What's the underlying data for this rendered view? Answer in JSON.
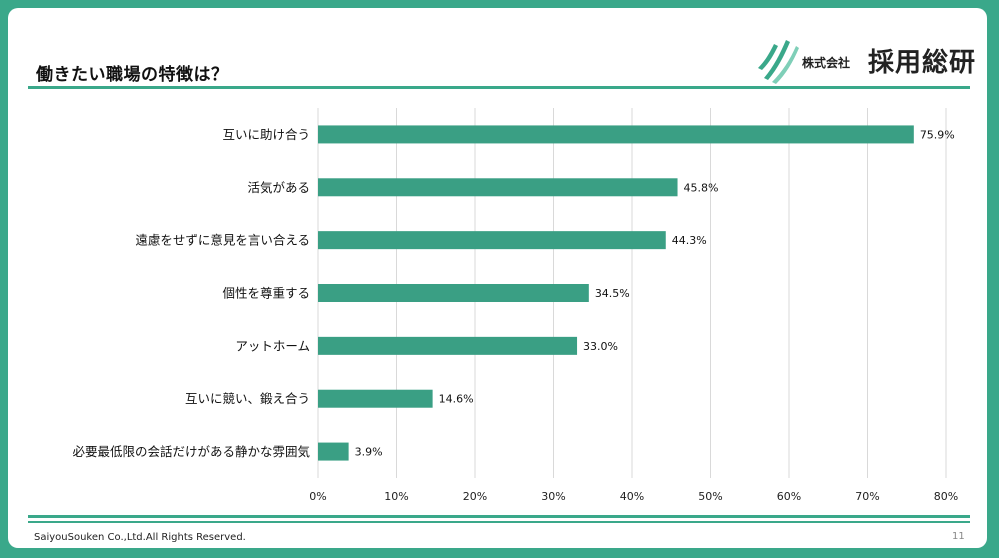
{
  "header": {
    "title": "働きたい職場の特徴は？",
    "logo_prefix": "株式会社",
    "logo_name": "採用総研"
  },
  "footer": {
    "copyright": "SaiyouSouken Co.,Ltd.All Rights Reserved.",
    "page_number": "11"
  },
  "colors": {
    "accent": "#3aa88a",
    "bar": "#3a9f84",
    "grid": "#d9d9d9"
  },
  "chart_data": {
    "type": "bar",
    "orientation": "horizontal",
    "categories": [
      "互いに助け合う",
      "活気がある",
      "遠慮をせずに意見を言い合える",
      "個性を尊重する",
      "アットホーム",
      "互いに競い、鍛え合う",
      "必要最低限の会話だけがある静かな雰囲気"
    ],
    "values": [
      75.9,
      45.8,
      44.3,
      34.5,
      33.0,
      14.6,
      3.9
    ],
    "value_labels": [
      "75.9%",
      "45.8%",
      "44.3%",
      "34.5%",
      "33.0%",
      "14.6%",
      "3.9%"
    ],
    "ticks": [
      0,
      10,
      20,
      30,
      40,
      50,
      60,
      70,
      80
    ],
    "tick_labels": [
      "0%",
      "10%",
      "20%",
      "30%",
      "40%",
      "50%",
      "60%",
      "70%",
      "80%"
    ],
    "xlim": [
      0,
      80
    ],
    "grid": true,
    "legend": "none"
  }
}
